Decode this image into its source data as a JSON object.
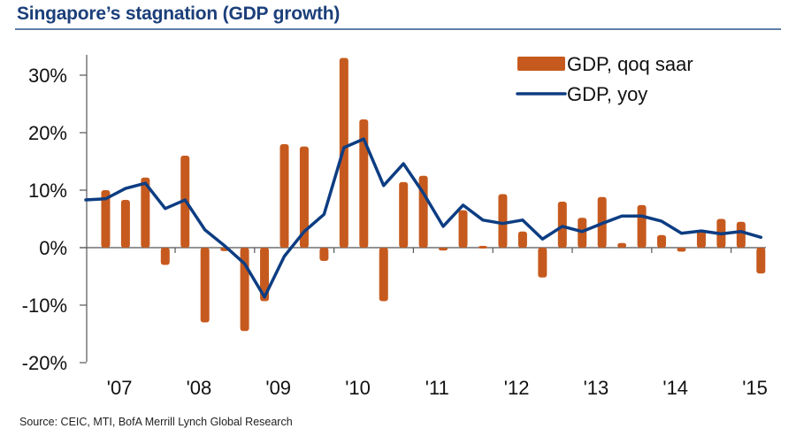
{
  "header": {
    "title": "Singapore’s stagnation (GDP growth)"
  },
  "footer": {
    "source": "Source: CEIC, MTI, BofA Merrill Lynch Global Research"
  },
  "colors": {
    "bar": "#c65a1e",
    "line": "#0d3d82",
    "title": "#1b3f7a",
    "axis": "#555555"
  },
  "chart_data": {
    "type": "bar",
    "title": "Singapore’s stagnation (GDP growth)",
    "xlabel": "",
    "ylabel": "",
    "ylim": [
      -20,
      33.5
    ],
    "yticks": [
      30,
      20,
      10,
      0,
      -10,
      -20
    ],
    "ytick_labels": [
      "30%",
      "20%",
      "10%",
      "0%",
      "-10%",
      "-20%"
    ],
    "year_labels": [
      "'07",
      "'08",
      "'09",
      "'10",
      "'11",
      "'12",
      "'13",
      "'14",
      "'15"
    ],
    "legend": {
      "position": "top-right",
      "entries": [
        "GDP, qoq saar",
        "GDP, yoy"
      ]
    },
    "grid": false,
    "quarters": [
      "2006Q4",
      "2007Q1",
      "2007Q2",
      "2007Q3",
      "2007Q4",
      "2008Q1",
      "2008Q2",
      "2008Q3",
      "2008Q4",
      "2009Q1",
      "2009Q2",
      "2009Q3",
      "2009Q4",
      "2010Q1",
      "2010Q2",
      "2010Q3",
      "2010Q4",
      "2011Q1",
      "2011Q2",
      "2011Q3",
      "2011Q4",
      "2012Q1",
      "2012Q2",
      "2012Q3",
      "2012Q4",
      "2013Q1",
      "2013Q2",
      "2013Q3",
      "2013Q4",
      "2014Q1",
      "2014Q2",
      "2014Q3",
      "2014Q4",
      "2015Q1",
      "2015Q2"
    ],
    "series": [
      {
        "name": "GDP, qoq saar",
        "type": "bar",
        "values": [
          null,
          10.0,
          8.3,
          12.2,
          -3.0,
          16.0,
          -13.0,
          -0.6,
          -14.5,
          -9.3,
          18.0,
          17.6,
          -2.3,
          33.0,
          22.3,
          -9.3,
          11.4,
          12.5,
          -0.5,
          6.5,
          0.3,
          9.3,
          2.8,
          -5.2,
          8.0,
          5.2,
          8.8,
          0.8,
          7.4,
          2.2,
          -0.7,
          3.0,
          5.0,
          4.5,
          -4.5
        ]
      },
      {
        "name": "GDP, yoy",
        "type": "line",
        "values": [
          8.3,
          8.5,
          10.3,
          11.2,
          6.8,
          8.3,
          3.1,
          0.3,
          -2.8,
          -8.6,
          -1.5,
          2.8,
          5.8,
          17.4,
          18.9,
          10.8,
          14.6,
          9.5,
          3.7,
          7.4,
          4.8,
          4.2,
          4.8,
          1.5,
          3.7,
          2.8,
          4.2,
          5.5,
          5.5,
          4.6,
          2.5,
          2.9,
          2.4,
          2.8,
          1.8
        ]
      }
    ]
  }
}
